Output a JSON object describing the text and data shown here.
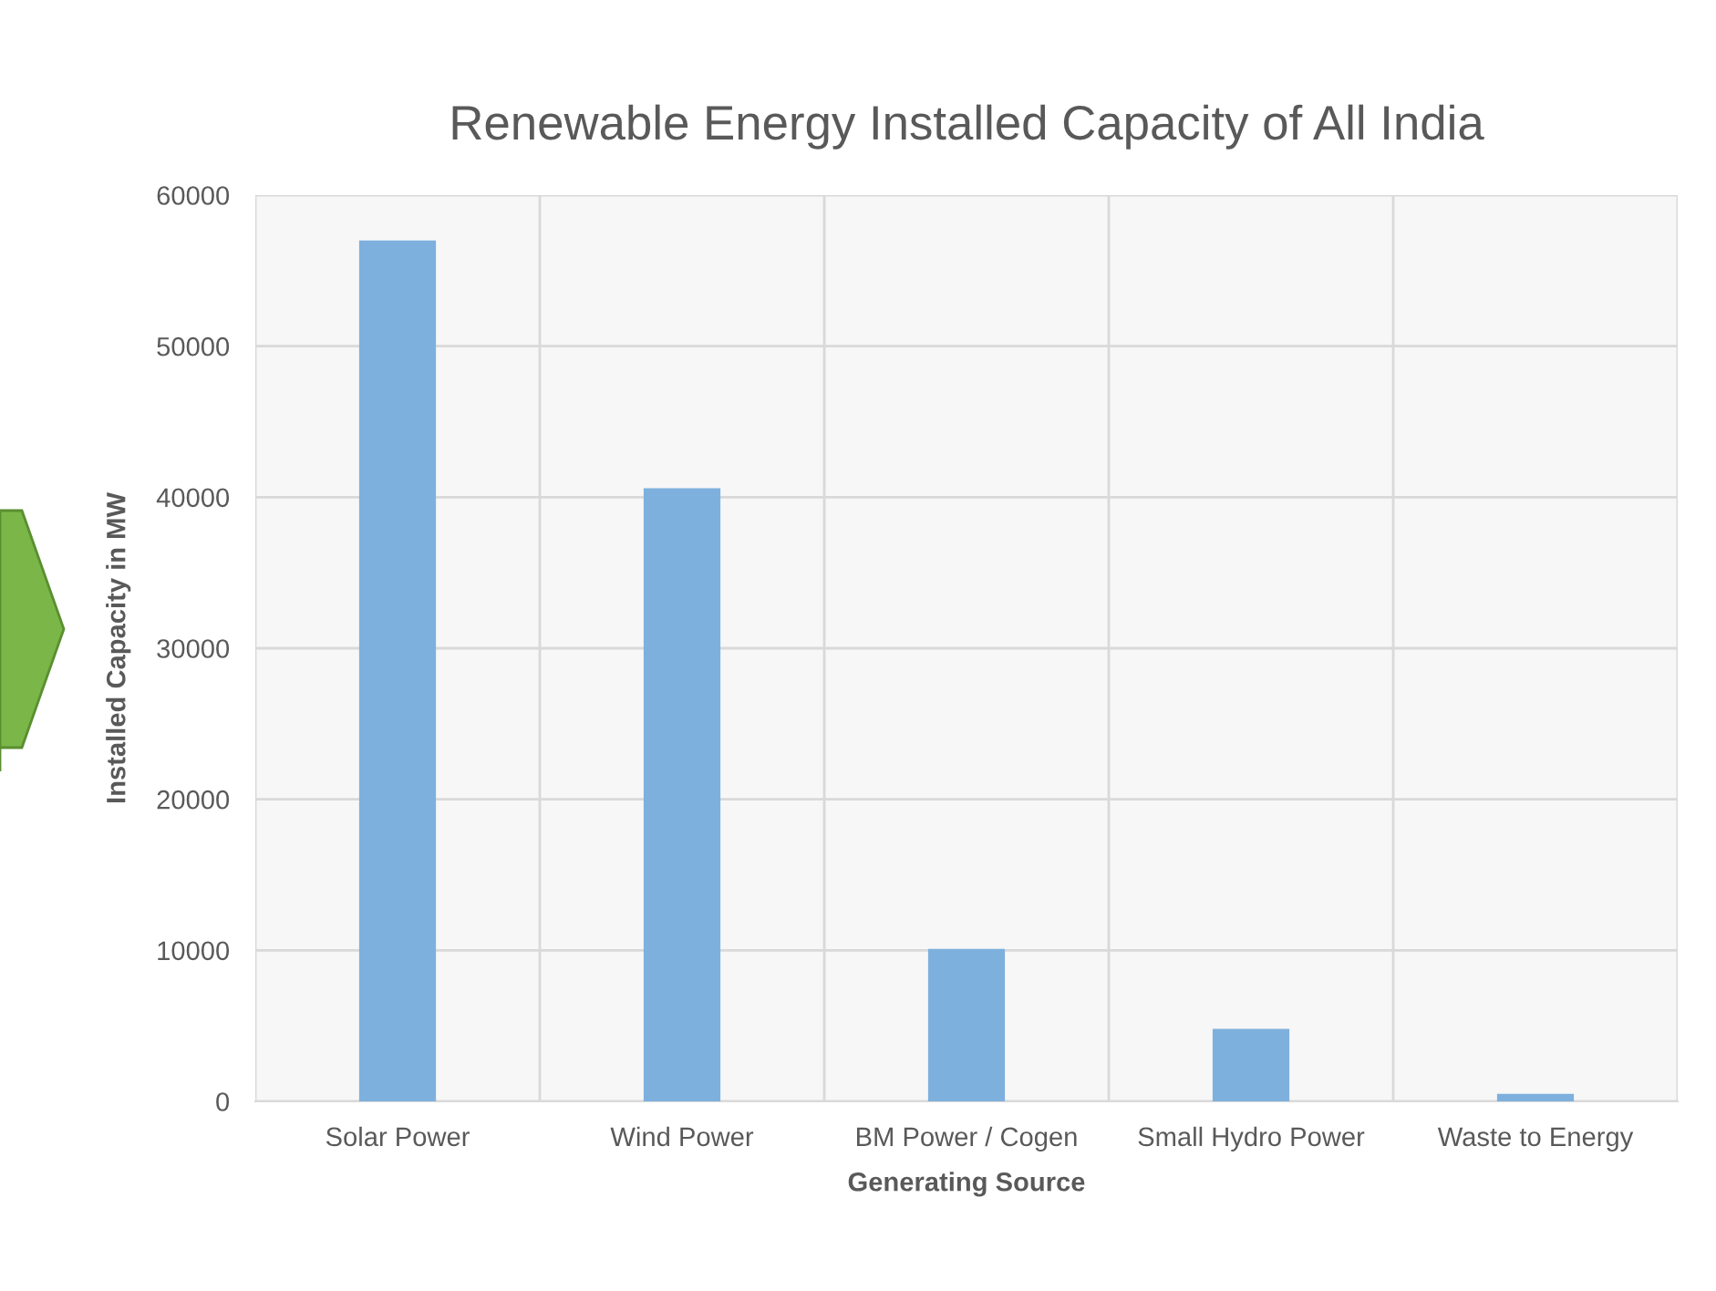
{
  "chart_data": {
    "type": "bar",
    "title": "Renewable Energy Installed Capacity of All India",
    "xlabel": "Generating Source",
    "ylabel": "Installed Capacity in MW",
    "categories": [
      "Solar Power",
      "Wind Power",
      "BM Power / Cogen",
      "Small Hydro Power",
      "Waste to Energy"
    ],
    "values": [
      57000,
      40600,
      10100,
      4800,
      500
    ],
    "color": "#7eb0de",
    "ylim": [
      0,
      60000
    ],
    "yticks": [
      0,
      10000,
      20000,
      30000,
      40000,
      50000,
      60000
    ],
    "grid": true,
    "legend": false
  }
}
